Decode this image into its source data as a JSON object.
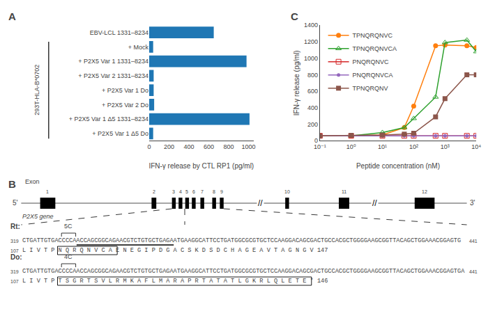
{
  "chart_data": [
    {
      "type": "bar",
      "orientation": "horizontal",
      "title": "A",
      "categories": [
        "EBV-LCL 1331–8234",
        "+ Mock",
        "+ P2X5 Var 1 1331–8234",
        "+ P2X5 Var 2 1331–8234",
        "+ P2X5 Var 1 Do",
        "+ P2X5 Var 2 Do",
        "+ P2X5 Var 1 Δ5 1331–8234",
        "+ P2X5 Var 1 Δ5 Do"
      ],
      "values": [
        650,
        40,
        980,
        45,
        45,
        50,
        1010,
        40
      ],
      "xlabel": "IFN-γ release by CTL RP1 (pg/ml)",
      "xlim": [
        0,
        1050
      ],
      "xticks": [
        0,
        200,
        400,
        600,
        800,
        1000
      ],
      "annotations": [
        "293T-HLA-B*0702"
      ],
      "grid": false
    },
    {
      "type": "line",
      "title": "C",
      "xlabel": "Peptide concentration (nM)",
      "ylabel": "IFN-γ release (pg/ml)",
      "log": "x",
      "x": [
        0.1,
        1,
        10,
        50.00345,
        100,
        500.0345,
        1000,
        5000.345,
        10000
      ],
      "series": [
        {
          "name": "TPNQRQNVC",
          "marker": "circle",
          "values": [
            60,
            60,
            70,
            160,
            420,
            1150,
            1160,
            1150,
            1130
          ]
        },
        {
          "name": "TPNQRQNVCA",
          "marker": "triangle-up-open",
          "values": [
            60,
            60,
            100,
            160,
            270,
            530,
            1190,
            1220,
            1080
          ]
        },
        {
          "name": "PNQRQNVC",
          "marker": "square-open",
          "values": [
            60,
            60,
            60,
            60,
            60,
            60,
            60,
            60,
            60
          ]
        },
        {
          "name": "PNQRQNVCA",
          "marker": "dot",
          "values": [
            60,
            60,
            60,
            60,
            60,
            60,
            60,
            60,
            60
          ]
        },
        {
          "name": "TPNQRQNV",
          "marker": "square",
          "values": [
            60,
            65,
            70,
            80,
            90,
            290,
            510,
            800,
            800
          ]
        }
      ],
      "xlim": [
        0.1,
        10000
      ],
      "xticks": [
        {
          "value": 0.1,
          "label": "10⁻¹"
        },
        {
          "value": 1,
          "label": "10⁰"
        },
        {
          "value": 10,
          "label": "10¹"
        },
        {
          "value": 100,
          "label": "10²"
        },
        {
          "value": 1000,
          "label": "10³"
        },
        {
          "value": 10000,
          "label": "10⁴"
        }
      ],
      "ylim": [
        0,
        1400
      ],
      "yticks": [
        0,
        200,
        400,
        600,
        800,
        1000,
        1200,
        1400
      ],
      "legend": "upper left",
      "grid": false
    },
    {
      "type": "diagram",
      "title": "B",
      "exon_title": "Exon",
      "exon_labels": [
        "1",
        "2",
        "3",
        "4",
        "5",
        "6",
        "7",
        "8",
        "9",
        "10",
        "11",
        "12"
      ],
      "gene_label": "P2X5 gene",
      "ends": [
        "5'",
        "3'"
      ],
      "break_mark": "//",
      "rows": [
        {
          "name": "Rt:",
          "splice": "5C",
          "nt_start": 319,
          "nt_end": 441,
          "aa_start": 107,
          "nt_seq": "CTGATTGTGACCCCAACCAGCGGCAGAACGTCTGTGCTGAGAATGAAGGCATTCCTGATGGCGCGTGCTCCAAGGACAGCGACTGCCACGCTGGGGAAGCGGTTACAGCTGGAAACGGAGTG",
          "aa_seq": "L I V T P N Q R Q N V C A E N E G I P D G A C S K D S D C H A G E A V T A G N G V 147"
        },
        {
          "name": "Do:",
          "splice": "4C",
          "nt_start": 319,
          "nt_end": 441,
          "aa_start": 107,
          "nt_seq": "CTGATTGTGACCCCAACCAGCGGCAGAACGTCTGTGCTGAGAATGAAGGCATTCCTGATGGCGCGTGCTCCAAGGACAGCGACTGCCACGCTGGGGAAGCGGTTACAGCTGGAAACGGAGTGA",
          "aa_seq": "L I V T P T S G R T S V L R M K A F L M A R A P R T A T A T L G K R L Q L E T E * 146"
        }
      ]
    }
  ]
}
